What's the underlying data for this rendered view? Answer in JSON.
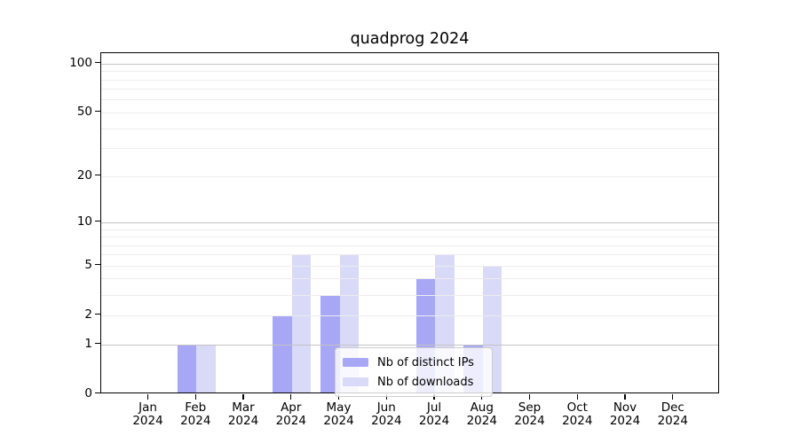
{
  "chart_data": {
    "type": "bar",
    "title": "quadprog 2024",
    "categories": [
      "Jan",
      "Feb",
      "Mar",
      "Apr",
      "May",
      "Jun",
      "Jul",
      "Aug",
      "Sep",
      "Oct",
      "Nov",
      "Dec"
    ],
    "year_label": "2024",
    "series": [
      {
        "name": "Nb of distinct IPs",
        "color": "#a7a7f6",
        "values": [
          0,
          1,
          0,
          2,
          3,
          0,
          4,
          1,
          0,
          0,
          0,
          0
        ]
      },
      {
        "name": "Nb of downloads",
        "color": "#d9d9f8",
        "values": [
          0,
          1,
          0,
          6,
          6,
          0,
          6,
          5,
          0,
          0,
          0,
          0
        ]
      }
    ],
    "y_axis": {
      "scale": "log1p",
      "tick_values": [
        0,
        1,
        2,
        5,
        10,
        20,
        50,
        100
      ],
      "range": [
        0,
        116
      ],
      "grid_major": [
        1,
        10,
        100
      ],
      "grid_minor": [
        2,
        3,
        4,
        5,
        6,
        7,
        8,
        9,
        20,
        30,
        40,
        50,
        60,
        70,
        80,
        90
      ]
    },
    "legend_position": "lower-center",
    "grid": "on",
    "colors": {
      "spine": "#000000",
      "grid_major": "#c3c3c3",
      "grid_minor": "#ededed"
    }
  }
}
